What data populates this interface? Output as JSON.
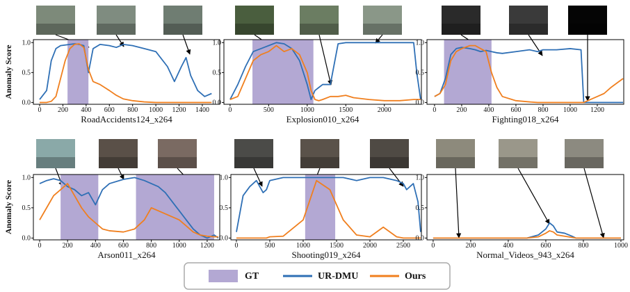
{
  "chart_data": [
    {
      "type": "line",
      "xlabel": "RoadAccidents124_x264",
      "ylabel": "Anomaly Score",
      "xlim": [
        -54,
        1550
      ],
      "ylim": [
        -0.03,
        1.05
      ],
      "xticks": [
        0,
        200,
        400,
        600,
        800,
        1000,
        1200,
        1400
      ],
      "yticks": [
        {
          "value": 0,
          "label": "0.0"
        },
        {
          "value": 0.5,
          "label": "0.5"
        },
        {
          "value": 1,
          "label": "1.0"
        }
      ],
      "shaded": {
        "name": "GT",
        "color": "#b3a8d3",
        "ranges": [
          [
            240,
            420
          ]
        ]
      },
      "x": [
        0,
        60,
        100,
        140,
        180,
        220,
        260,
        300,
        340,
        380,
        420,
        460,
        520,
        600,
        660,
        720,
        800,
        900,
        1000,
        1100,
        1160,
        1220,
        1260,
        1300,
        1360,
        1420,
        1480
      ],
      "series": [
        {
          "name": "UR-DMU",
          "color": "#2e6fb5",
          "values": [
            0.05,
            0.2,
            0.7,
            0.9,
            0.95,
            0.96,
            0.97,
            0.98,
            0.97,
            0.95,
            0.5,
            0.9,
            0.97,
            0.95,
            0.92,
            0.97,
            0.95,
            0.9,
            0.85,
            0.6,
            0.35,
            0.6,
            0.75,
            0.45,
            0.2,
            0.1,
            0.15
          ]
        },
        {
          "name": "Ours",
          "color": "#f07f1e",
          "values": [
            0,
            0,
            0.02,
            0.1,
            0.4,
            0.7,
            0.9,
            0.97,
            0.98,
            0.92,
            0.55,
            0.35,
            0.3,
            0.2,
            0.12,
            0.06,
            0.03,
            0.01,
            0,
            0,
            0,
            0,
            0,
            0,
            0,
            0,
            0
          ]
        }
      ]
    },
    {
      "type": "line",
      "xlabel": "Explosion010_x264",
      "xlim": [
        -80,
        2480
      ],
      "ylim": [
        -0.03,
        1.05
      ],
      "xticks": [
        0,
        500,
        1000,
        1500,
        2000
      ],
      "yticks": [
        {
          "value": 0,
          "label": "0.0"
        },
        {
          "value": 0.5,
          "label": "0.5"
        },
        {
          "value": 1,
          "label": "1.0"
        }
      ],
      "shaded": {
        "name": "GT",
        "color": "#b3a8d3",
        "ranges": [
          [
            290,
            1080
          ]
        ]
      },
      "x": [
        0,
        100,
        200,
        300,
        400,
        500,
        600,
        700,
        800,
        900,
        1000,
        1050,
        1100,
        1150,
        1200,
        1300,
        1400,
        1500,
        1600,
        1800,
        2000,
        2200,
        2380,
        2420,
        2470
      ],
      "series": [
        {
          "name": "UR-DMU",
          "color": "#2e6fb5",
          "values": [
            0.05,
            0.3,
            0.6,
            0.85,
            0.9,
            0.95,
            1.0,
            0.98,
            0.9,
            0.7,
            0.3,
            0.05,
            0.2,
            0.25,
            0.3,
            0.3,
            0.98,
            1.0,
            1.0,
            1.0,
            1.0,
            1.0,
            1.0,
            0.5,
            0.05
          ]
        },
        {
          "name": "Ours",
          "color": "#f07f1e",
          "values": [
            0.05,
            0.1,
            0.4,
            0.7,
            0.8,
            0.85,
            0.95,
            0.85,
            0.9,
            0.8,
            0.5,
            0.2,
            0.05,
            0.03,
            0.05,
            0.1,
            0.1,
            0.12,
            0.08,
            0.05,
            0.03,
            0.03,
            0.05,
            0.05,
            0.05
          ]
        }
      ]
    },
    {
      "type": "line",
      "xlabel": "Fighting018_x264",
      "xlim": [
        -56,
        1395
      ],
      "ylim": [
        -0.03,
        1.05
      ],
      "xticks": [
        0,
        200,
        400,
        600,
        800,
        1000,
        1200
      ],
      "yticks": [
        {
          "value": 0,
          "label": "0.0"
        },
        {
          "value": 0.5,
          "label": "0.5"
        },
        {
          "value": 1,
          "label": "1.0"
        }
      ],
      "shaded": {
        "name": "GT",
        "color": "#b3a8d3",
        "ranges": [
          [
            70,
            420
          ]
        ]
      },
      "x": [
        0,
        40,
        80,
        120,
        160,
        200,
        260,
        300,
        340,
        380,
        420,
        460,
        500,
        600,
        700,
        760,
        800,
        900,
        1000,
        1080,
        1100,
        1150,
        1200,
        1250,
        1300,
        1360,
        1390
      ],
      "series": [
        {
          "name": "UR-DMU",
          "color": "#2e6fb5",
          "values": [
            0.1,
            0.15,
            0.4,
            0.8,
            0.9,
            0.92,
            0.9,
            0.88,
            0.85,
            0.87,
            0.85,
            0.83,
            0.82,
            0.85,
            0.88,
            0.85,
            0.88,
            0.88,
            0.9,
            0.88,
            0,
            0,
            0,
            0,
            0,
            0,
            0
          ]
        },
        {
          "name": "Ours",
          "color": "#f07f1e",
          "values": [
            0.1,
            0.15,
            0.3,
            0.7,
            0.85,
            0.9,
            0.95,
            0.95,
            0.9,
            0.85,
            0.5,
            0.25,
            0.1,
            0.03,
            0.01,
            0,
            0,
            0,
            0,
            0,
            0,
            0.05,
            0.1,
            0.15,
            0.25,
            0.35,
            0.4
          ]
        }
      ]
    },
    {
      "type": "line",
      "xlabel": "Arson011_x264",
      "ylabel": "Anomaly Score",
      "xlim": [
        -45,
        1290
      ],
      "ylim": [
        -0.03,
        1.05
      ],
      "xticks": [
        0,
        200,
        400,
        600,
        800,
        1000,
        1200
      ],
      "yticks": [
        {
          "value": 0,
          "label": "0.0"
        },
        {
          "value": 0.5,
          "label": "0.5"
        },
        {
          "value": 1,
          "label": "1.0"
        }
      ],
      "shaded": {
        "name": "GT",
        "color": "#b3a8d3",
        "ranges": [
          [
            150,
            420
          ],
          [
            690,
            1250
          ]
        ]
      },
      "x": [
        0,
        50,
        100,
        150,
        200,
        250,
        300,
        350,
        400,
        450,
        500,
        600,
        680,
        750,
        800,
        850,
        900,
        950,
        1000,
        1050,
        1100,
        1150,
        1200,
        1250,
        1280
      ],
      "series": [
        {
          "name": "UR-DMU",
          "color": "#2e6fb5",
          "values": [
            0.9,
            0.95,
            0.98,
            0.95,
            0.85,
            0.8,
            0.7,
            0.75,
            0.55,
            0.8,
            0.9,
            0.97,
            1.0,
            0.95,
            0.9,
            0.85,
            0.75,
            0.6,
            0.45,
            0.3,
            0.15,
            0.05,
            0,
            0.05,
            0
          ]
        },
        {
          "name": "Ours",
          "color": "#f07f1e",
          "values": [
            0.3,
            0.5,
            0.7,
            0.8,
            0.9,
            0.7,
            0.5,
            0.35,
            0.25,
            0.15,
            0.12,
            0.1,
            0.15,
            0.3,
            0.5,
            0.45,
            0.4,
            0.35,
            0.3,
            0.2,
            0.1,
            0.05,
            0.03,
            0.02,
            0.02
          ]
        }
      ]
    },
    {
      "type": "line",
      "xlabel": "Shooting019_x264",
      "xlim": [
        -83,
        2771
      ],
      "ylim": [
        -0.03,
        1.05
      ],
      "xticks": [
        0,
        500,
        1000,
        1500,
        2000,
        2500
      ],
      "yticks": [
        {
          "value": 0,
          "label": "0.0"
        },
        {
          "value": 0.5,
          "label": "0.5"
        },
        {
          "value": 1,
          "label": "1.0"
        }
      ],
      "shaded": {
        "name": "GT",
        "color": "#b3a8d3",
        "ranges": [
          [
            1030,
            1480
          ]
        ]
      },
      "x": [
        0,
        100,
        200,
        300,
        350,
        400,
        450,
        500,
        700,
        1000,
        1200,
        1400,
        1600,
        1800,
        2000,
        2200,
        2400,
        2500,
        2550,
        2650,
        2720,
        2760
      ],
      "series": [
        {
          "name": "UR-DMU",
          "color": "#2e6fb5",
          "values": [
            0.1,
            0.7,
            0.85,
            0.95,
            0.85,
            0.75,
            0.8,
            0.95,
            1.0,
            1.0,
            1.0,
            1.0,
            1.0,
            0.95,
            1.0,
            1.0,
            0.95,
            0.9,
            0.8,
            0.9,
            0.6,
            0.1
          ]
        },
        {
          "name": "Ours",
          "color": "#f07f1e",
          "values": [
            0,
            0,
            0,
            0,
            0,
            0,
            0,
            0.02,
            0.03,
            0.3,
            0.95,
            0.8,
            0.3,
            0.05,
            0.02,
            0.18,
            0.02,
            0,
            0,
            0,
            0,
            0
          ]
        }
      ]
    },
    {
      "type": "line",
      "xlabel": "Normal_Videos_943_x264",
      "xlim": [
        -33,
        1015
      ],
      "ylim": [
        -0.03,
        1.05
      ],
      "xticks": [
        0,
        200,
        400,
        600,
        800,
        1000
      ],
      "yticks": [
        {
          "value": 0,
          "label": "0.0"
        },
        {
          "value": 0.5,
          "label": "0.5"
        },
        {
          "value": 1,
          "label": "1.0"
        }
      ],
      "shaded": {
        "name": "GT",
        "color": "#b3a8d3",
        "ranges": []
      },
      "x": [
        0,
        100,
        200,
        300,
        400,
        500,
        560,
        600,
        620,
        640,
        660,
        700,
        740,
        760,
        800,
        900,
        1000
      ],
      "series": [
        {
          "name": "UR-DMU",
          "color": "#2e6fb5",
          "values": [
            0,
            0,
            0,
            0,
            0,
            0,
            0.05,
            0.15,
            0.25,
            0.2,
            0.1,
            0.08,
            0.03,
            0,
            0,
            0,
            0
          ]
        },
        {
          "name": "Ours",
          "color": "#f07f1e",
          "values": [
            0,
            0,
            0,
            0,
            0,
            0,
            0.02,
            0.08,
            0.12,
            0.1,
            0.05,
            0.03,
            0.01,
            0,
            0,
            0,
            0
          ]
        }
      ]
    }
  ]
}
